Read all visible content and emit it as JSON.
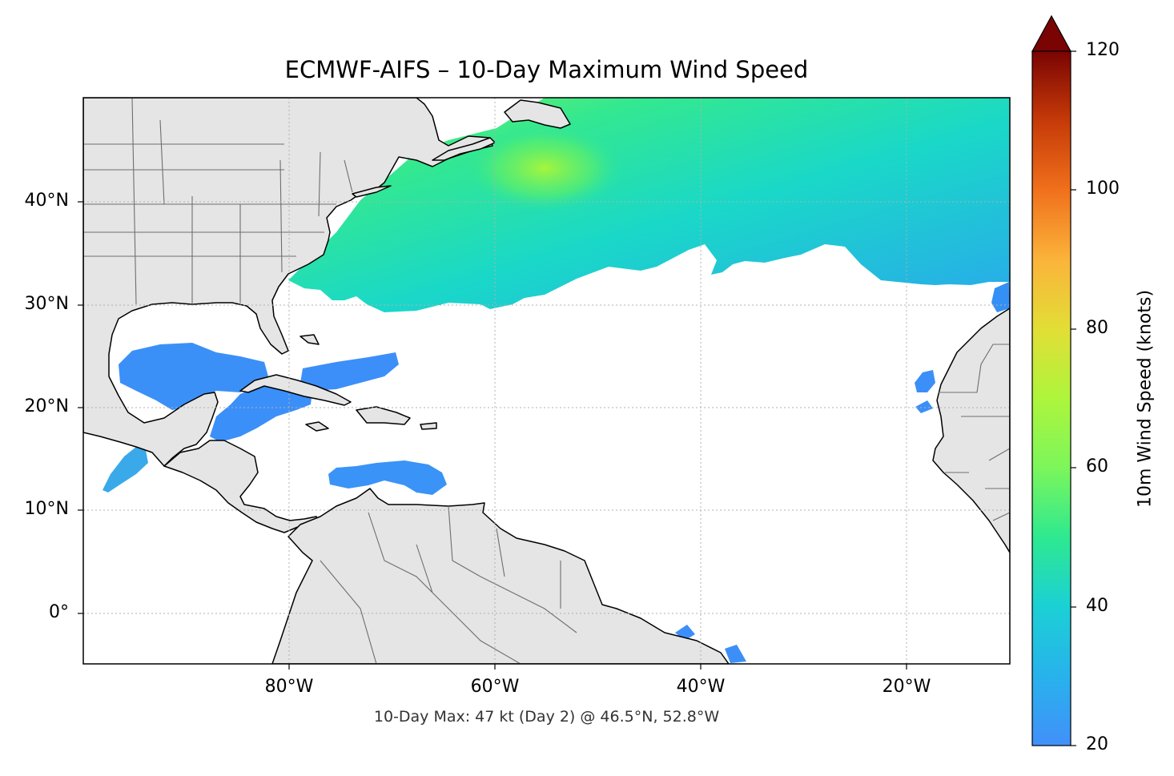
{
  "title": "ECMWF-AIFS – 10-Day Maximum Wind Speed",
  "footnote": "10-Day Max: 47 kt (Day 2) @ 46.5°N, 52.8°W",
  "map": {
    "lat_labels": [
      "40°N",
      "30°N",
      "20°N",
      "10°N",
      "0°"
    ],
    "lon_labels": [
      "80°W",
      "60°W",
      "40°W",
      "20°W"
    ],
    "land_color": "#e5e5e5",
    "gridlines": true
  },
  "colorbar": {
    "label": "10m Wind Speed (knots)",
    "ticks": [
      "20",
      "40",
      "60",
      "80",
      "100",
      "120"
    ],
    "min": 20,
    "max": 120,
    "extend": "max",
    "colormap": "turbo"
  }
}
